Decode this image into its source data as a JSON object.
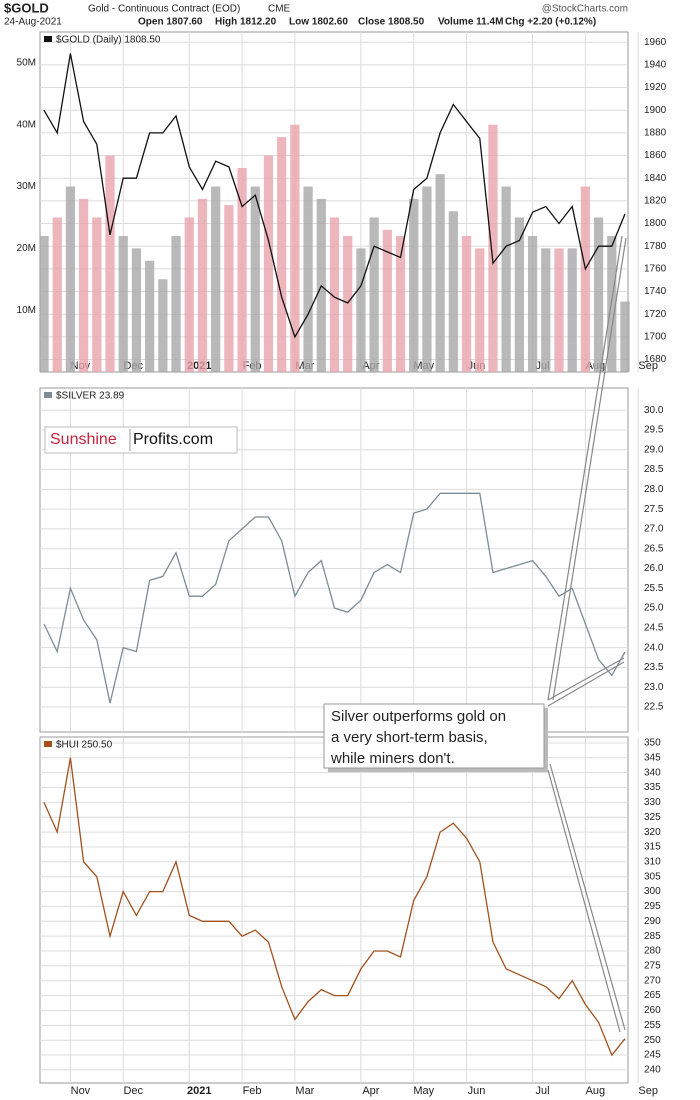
{
  "header": {
    "symbol": "$GOLD",
    "description": "Gold - Continuous Contract (EOD)",
    "exchange": "CME",
    "date": "24-Aug-2021",
    "open": "Open 1807.60",
    "high": "High 1812.20",
    "low": "Low 1802.60",
    "close": "Close 1808.50",
    "volume": "Volume 11.4M",
    "change": "Chg +2.20 (+0.12%)",
    "watermark": "@StockCharts.com"
  },
  "logo": {
    "left": "Sunshine",
    "right": "Profits.com"
  },
  "annotation": {
    "lines": [
      "Silver outperforms gold on",
      "a very short-term basis,",
      "while miners don't."
    ]
  },
  "chart_data": [
    {
      "type": "line",
      "categories": [
        null,
        null,
        "Nov",
        null,
        null,
        null,
        "Dec",
        null,
        null,
        null,
        null,
        "2021",
        null,
        null,
        null,
        "Feb",
        null,
        null,
        null,
        "Mar",
        null,
        null,
        null,
        null,
        "Apr",
        null,
        null,
        null,
        "May",
        null,
        null,
        null,
        "Jun",
        null,
        null,
        null,
        null,
        "Jul",
        null,
        null,
        null,
        "Aug",
        null,
        null,
        null,
        "Sep"
      ],
      "series": [
        {
          "name": "$GOLD (Daily) 1808.50",
          "color": "#111111",
          "values": [
            1900,
            1880,
            1950,
            1890,
            1870,
            1790,
            1840,
            1840,
            1880,
            1880,
            1895,
            1850,
            1830,
            1855,
            1850,
            1815,
            1825,
            1785,
            1735,
            1700,
            1720,
            1745,
            1735,
            1730,
            1745,
            1780,
            1775,
            1770,
            1830,
            1840,
            1880,
            1905,
            1890,
            1875,
            1765,
            1780,
            1785,
            1810,
            1815,
            1800,
            1815,
            1760,
            1780,
            1780,
            1808.5,
            null
          ]
        }
      ],
      "ylim": [
        1669,
        1969
      ],
      "yticks": [
        1680,
        1700,
        1720,
        1740,
        1760,
        1780,
        1800,
        1820,
        1840,
        1860,
        1880,
        1900,
        1920,
        1940,
        1960
      ],
      "grid": true,
      "volume": {
        "up_color": "#a8a8a8",
        "down_color": "#e9a3ab",
        "values": [
          22000000,
          25000000,
          30000000,
          28000000,
          25000000,
          35000000,
          22000000,
          20000000,
          18000000,
          15000000,
          22000000,
          25000000,
          28000000,
          30000000,
          27000000,
          33000000,
          30000000,
          35000000,
          38000000,
          40000000,
          30000000,
          28000000,
          25000000,
          22000000,
          20000000,
          25000000,
          23000000,
          22000000,
          28000000,
          30000000,
          32000000,
          26000000,
          22000000,
          20000000,
          40000000,
          30000000,
          25000000,
          22000000,
          20000000,
          20000000,
          20000000,
          30000000,
          25000000,
          22000000,
          11400000,
          null
        ],
        "ylim": [
          0,
          55000000
        ],
        "yticks": [
          {
            "value": 10000000,
            "label": "10M"
          },
          {
            "value": 20000000,
            "label": "20M"
          },
          {
            "value": 30000000,
            "label": "30M"
          },
          {
            "value": 40000000,
            "label": "40M"
          },
          {
            "value": 50000000,
            "label": "50M"
          }
        ]
      }
    },
    {
      "type": "line",
      "series": [
        {
          "name": "$SILVER 23.89",
          "color": "#7d8b94",
          "values": [
            24.6,
            23.9,
            25.5,
            24.7,
            24.2,
            22.6,
            24.0,
            23.9,
            25.7,
            25.8,
            26.4,
            25.3,
            25.3,
            25.6,
            26.7,
            27.0,
            27.3,
            27.3,
            26.7,
            25.3,
            25.9,
            26.2,
            25.0,
            24.9,
            25.2,
            25.9,
            26.1,
            25.9,
            27.4,
            27.5,
            27.9,
            27.9,
            27.9,
            27.9,
            25.9,
            26.0,
            26.1,
            26.2,
            25.8,
            25.3,
            25.5,
            24.6,
            23.7,
            23.3,
            23.89,
            null
          ]
        }
      ],
      "ylim": [
        21.87,
        30.56
      ],
      "yticks": [
        22.5,
        {
          "value": 23,
          "label": "23.0"
        },
        23.5,
        {
          "value": 24,
          "label": "24.0"
        },
        24.5,
        {
          "value": 25,
          "label": "25.0"
        },
        25.5,
        {
          "value": 26,
          "label": "26.0"
        },
        26.5,
        {
          "value": 27,
          "label": "27.0"
        },
        27.5,
        {
          "value": 28,
          "label": "28.0"
        },
        28.5,
        {
          "value": 29,
          "label": "29.0"
        },
        29.5,
        {
          "value": 30,
          "label": "30.0"
        }
      ],
      "grid": true
    },
    {
      "type": "line",
      "categories": [
        null,
        null,
        "Nov",
        null,
        null,
        null,
        "Dec",
        null,
        null,
        null,
        null,
        "2021",
        null,
        null,
        null,
        "Feb",
        null,
        null,
        null,
        "Mar",
        null,
        null,
        null,
        null,
        "Apr",
        null,
        null,
        null,
        "May",
        null,
        null,
        null,
        "Jun",
        null,
        null,
        null,
        null,
        "Jul",
        null,
        null,
        null,
        "Aug",
        null,
        null,
        null,
        "Sep"
      ],
      "series": [
        {
          "name": "$HUI 250.50",
          "color": "#a0521e",
          "values": [
            330,
            320,
            345,
            310,
            305,
            285,
            300,
            292,
            300,
            300,
            310,
            292,
            290,
            290,
            290,
            285,
            287,
            283,
            268,
            257,
            263,
            267,
            265,
            265,
            274,
            280,
            280,
            278,
            297,
            305,
            320,
            323,
            318,
            310,
            283,
            274,
            272,
            270,
            268,
            264,
            270,
            262,
            256,
            245,
            250.5,
            null
          ]
        }
      ],
      "ylim": [
        235.6,
        352
      ],
      "yticks": [
        240,
        245,
        250,
        255,
        260,
        265,
        270,
        275,
        280,
        285,
        290,
        295,
        300,
        305,
        310,
        315,
        320,
        325,
        330,
        335,
        340,
        345,
        350
      ],
      "grid": true
    }
  ]
}
